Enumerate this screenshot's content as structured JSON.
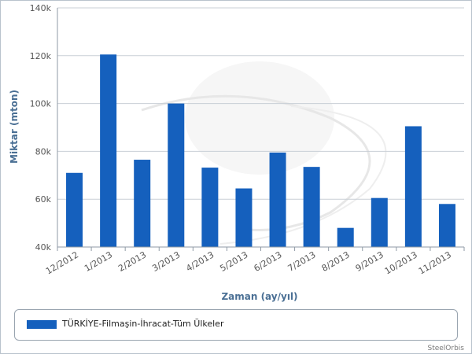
{
  "chart_data": {
    "type": "bar",
    "categories": [
      "12/2012",
      "1/2013",
      "2/2013",
      "3/2013",
      "4/2013",
      "5/2013",
      "6/2013",
      "7/2013",
      "8/2013",
      "9/2013",
      "10/2013",
      "11/2013"
    ],
    "series": [
      {
        "name": "TÜRKİYE-Filmaşin-İhracat-Tüm Ülkeler",
        "values": [
          71000,
          120500,
          76500,
          100000,
          73200,
          64500,
          79500,
          73500,
          48000,
          60500,
          90500,
          58000
        ]
      }
    ],
    "xlabel": "Zaman (ay/yıl)",
    "ylabel": "Miktar (mton)",
    "ylim": [
      40000,
      140000
    ],
    "yticks": [
      40000,
      60000,
      80000,
      100000,
      120000,
      140000
    ],
    "ytick_labels": [
      "40k",
      "60k",
      "80k",
      "100k",
      "120k",
      "140k"
    ],
    "grid": true,
    "legend_position": "bottom",
    "bar_color": "#1560bd"
  },
  "credit": "SteelOrbis"
}
